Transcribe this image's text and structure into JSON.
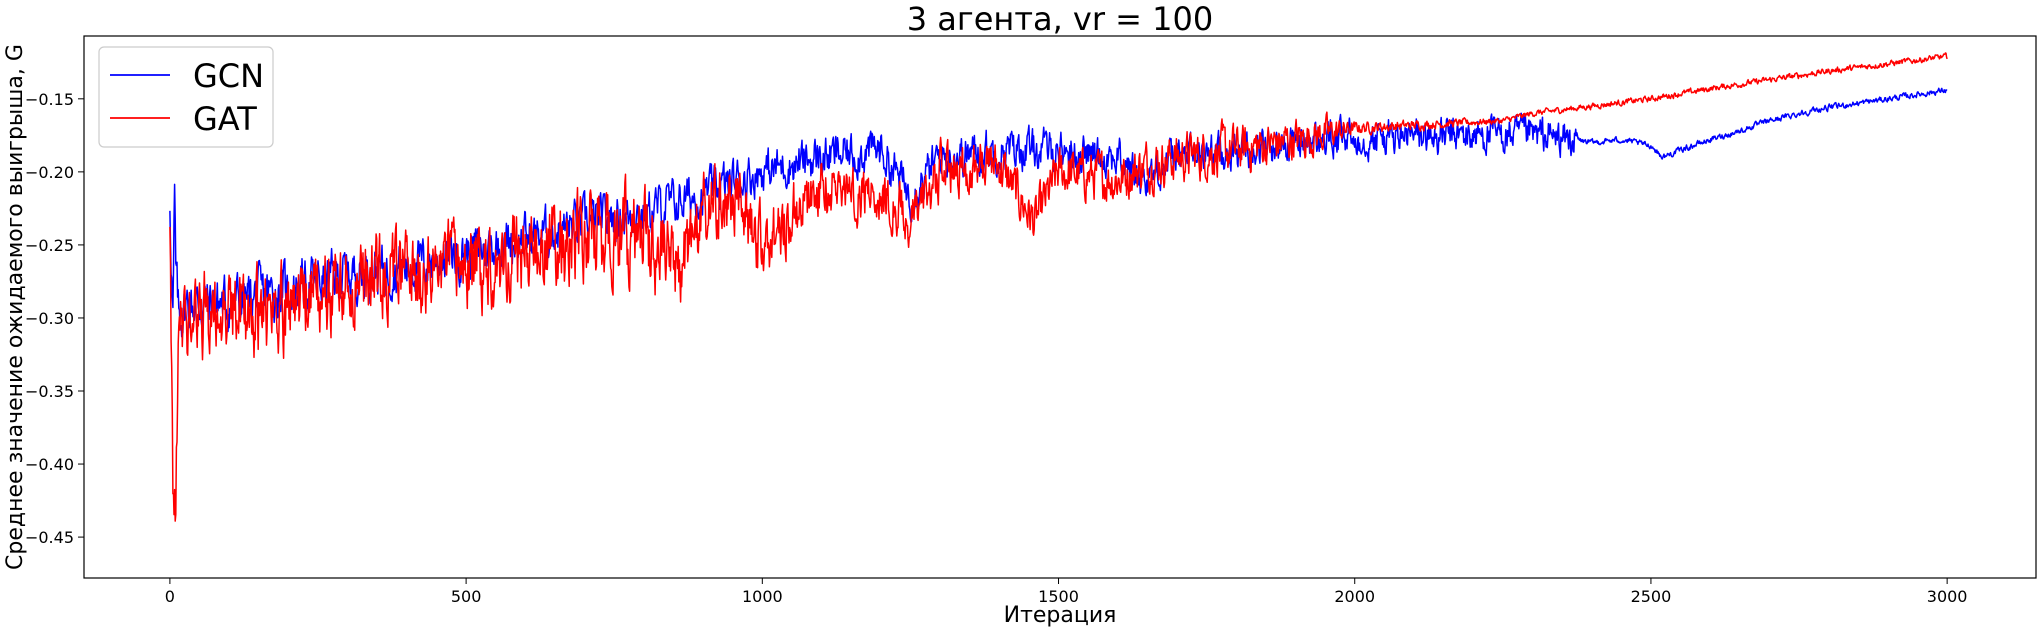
{
  "chart_data": {
    "type": "line",
    "title": "3 агента, vr = 100",
    "xlabel": "Итерация",
    "ylabel": "Среднее значение ожидаемого выигрыша, G",
    "xlim": [
      -145,
      3150
    ],
    "ylim": [
      -0.478,
      -0.107
    ],
    "xticks": [
      0,
      500,
      1000,
      1500,
      2000,
      2500,
      3000
    ],
    "yticks": [
      -0.45,
      -0.4,
      -0.35,
      -0.3,
      -0.25,
      -0.2,
      -0.15
    ],
    "ytick_labels": [
      "−0.45",
      "−0.40",
      "−0.35",
      "−0.30",
      "−0.25",
      "−0.20",
      "−0.15"
    ],
    "grid": false,
    "legend_position": "top-left",
    "series": [
      {
        "name": "GCN",
        "color": "#0000ff",
        "trend_x": [
          0,
          5,
          8,
          10,
          15,
          30,
          100,
          200,
          300,
          400,
          500,
          600,
          700,
          800,
          900,
          960,
          1000,
          1100,
          1200,
          1250,
          1300,
          1400,
          1500,
          1600,
          1640,
          1700,
          1800,
          1900,
          2000,
          2100,
          2200,
          2300,
          2370,
          2400,
          2450,
          2500,
          2520,
          2550,
          2600,
          2650,
          2700,
          2750,
          2800,
          2850,
          2900,
          2950,
          3000
        ],
        "trend_y": [
          -0.22,
          -0.3,
          -0.22,
          -0.27,
          -0.3,
          -0.29,
          -0.29,
          -0.28,
          -0.27,
          -0.265,
          -0.255,
          -0.245,
          -0.235,
          -0.228,
          -0.215,
          -0.205,
          -0.2,
          -0.19,
          -0.185,
          -0.215,
          -0.19,
          -0.185,
          -0.185,
          -0.19,
          -0.205,
          -0.19,
          -0.185,
          -0.18,
          -0.177,
          -0.176,
          -0.175,
          -0.175,
          -0.178,
          -0.18,
          -0.178,
          -0.182,
          -0.19,
          -0.185,
          -0.178,
          -0.172,
          -0.165,
          -0.16,
          -0.156,
          -0.153,
          -0.15,
          -0.147,
          -0.144
        ],
        "amp_x": [
          0,
          100,
          500,
          1000,
          1200,
          1500,
          2000,
          2370,
          2380,
          3000
        ],
        "amp_y": [
          0.018,
          0.018,
          0.016,
          0.014,
          0.014,
          0.013,
          0.012,
          0.012,
          0.002,
          0.002
        ]
      },
      {
        "name": "GAT",
        "color": "#ff0000",
        "trend_x": [
          0,
          5,
          10,
          15,
          30,
          100,
          150,
          200,
          300,
          400,
          500,
          600,
          700,
          800,
          850,
          900,
          950,
          1000,
          1100,
          1200,
          1250,
          1300,
          1400,
          1460,
          1500,
          1600,
          1650,
          1700,
          1800,
          1900,
          2000,
          2100,
          2200,
          2250,
          2300,
          2400,
          2500,
          2600,
          2700,
          2800,
          2900,
          3000
        ],
        "trend_y": [
          -0.22,
          -0.44,
          -0.44,
          -0.31,
          -0.3,
          -0.295,
          -0.3,
          -0.29,
          -0.28,
          -0.27,
          -0.265,
          -0.255,
          -0.245,
          -0.24,
          -0.27,
          -0.23,
          -0.22,
          -0.25,
          -0.21,
          -0.215,
          -0.235,
          -0.2,
          -0.195,
          -0.235,
          -0.2,
          -0.205,
          -0.195,
          -0.19,
          -0.185,
          -0.178,
          -0.17,
          -0.168,
          -0.166,
          -0.165,
          -0.16,
          -0.155,
          -0.15,
          -0.143,
          -0.137,
          -0.131,
          -0.126,
          -0.121
        ],
        "amp_x": [
          0,
          100,
          500,
          800,
          1000,
          1200,
          1500,
          1800,
          1950,
          2000,
          2250,
          3000
        ],
        "amp_y": [
          0.03,
          0.03,
          0.028,
          0.03,
          0.022,
          0.018,
          0.016,
          0.016,
          0.012,
          0.004,
          0.002,
          0.002
        ]
      }
    ]
  }
}
